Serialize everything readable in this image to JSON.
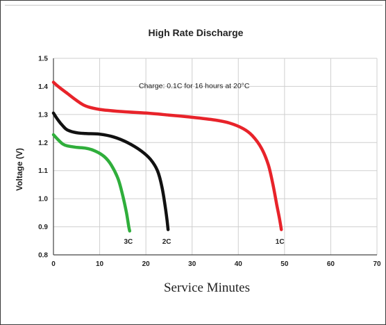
{
  "chart_data": {
    "type": "line",
    "title": "High Rate Discharge",
    "xlabel": "Service Minutes",
    "ylabel": "Voltage (V)",
    "xlim": [
      0,
      70
    ],
    "ylim": [
      0.8,
      1.5
    ],
    "xticks": [
      0,
      10,
      20,
      30,
      40,
      50,
      60,
      70
    ],
    "yticks": [
      "0.8",
      "0.9",
      "1.0",
      "1.1",
      "1.2",
      "1.3",
      "1.4",
      "1.5"
    ],
    "grid": true,
    "annotation": "Charge: 0.1C for 16 hours at 20°C",
    "series": [
      {
        "name": "1C",
        "color": "#e8232a",
        "points": [
          [
            0,
            1.415
          ],
          [
            1,
            1.4
          ],
          [
            3,
            1.375
          ],
          [
            5,
            1.35
          ],
          [
            7,
            1.33
          ],
          [
            10,
            1.318
          ],
          [
            15,
            1.31
          ],
          [
            20,
            1.305
          ],
          [
            25,
            1.298
          ],
          [
            30,
            1.29
          ],
          [
            35,
            1.28
          ],
          [
            38,
            1.27
          ],
          [
            41,
            1.25
          ],
          [
            43,
            1.225
          ],
          [
            45,
            1.18
          ],
          [
            46.5,
            1.12
          ],
          [
            47.5,
            1.05
          ],
          [
            48.3,
            0.98
          ],
          [
            48.9,
            0.93
          ],
          [
            49.3,
            0.89
          ]
        ]
      },
      {
        "name": "2C",
        "color": "#111111",
        "points": [
          [
            0,
            1.305
          ],
          [
            1,
            1.28
          ],
          [
            2,
            1.26
          ],
          [
            3,
            1.245
          ],
          [
            5,
            1.235
          ],
          [
            7,
            1.232
          ],
          [
            10,
            1.23
          ],
          [
            13,
            1.22
          ],
          [
            16,
            1.2
          ],
          [
            19,
            1.17
          ],
          [
            21,
            1.14
          ],
          [
            22.5,
            1.1
          ],
          [
            23.5,
            1.04
          ],
          [
            24.2,
            0.97
          ],
          [
            24.6,
            0.92
          ],
          [
            24.8,
            0.89
          ]
        ]
      },
      {
        "name": "3C",
        "color": "#2fae3b",
        "points": [
          [
            0,
            1.228
          ],
          [
            1,
            1.21
          ],
          [
            2,
            1.195
          ],
          [
            3,
            1.188
          ],
          [
            5,
            1.183
          ],
          [
            7,
            1.18
          ],
          [
            9,
            1.17
          ],
          [
            11,
            1.15
          ],
          [
            12.5,
            1.12
          ],
          [
            14,
            1.07
          ],
          [
            15,
            1.01
          ],
          [
            15.8,
            0.95
          ],
          [
            16.3,
            0.9
          ],
          [
            16.5,
            0.885
          ]
        ]
      }
    ]
  }
}
